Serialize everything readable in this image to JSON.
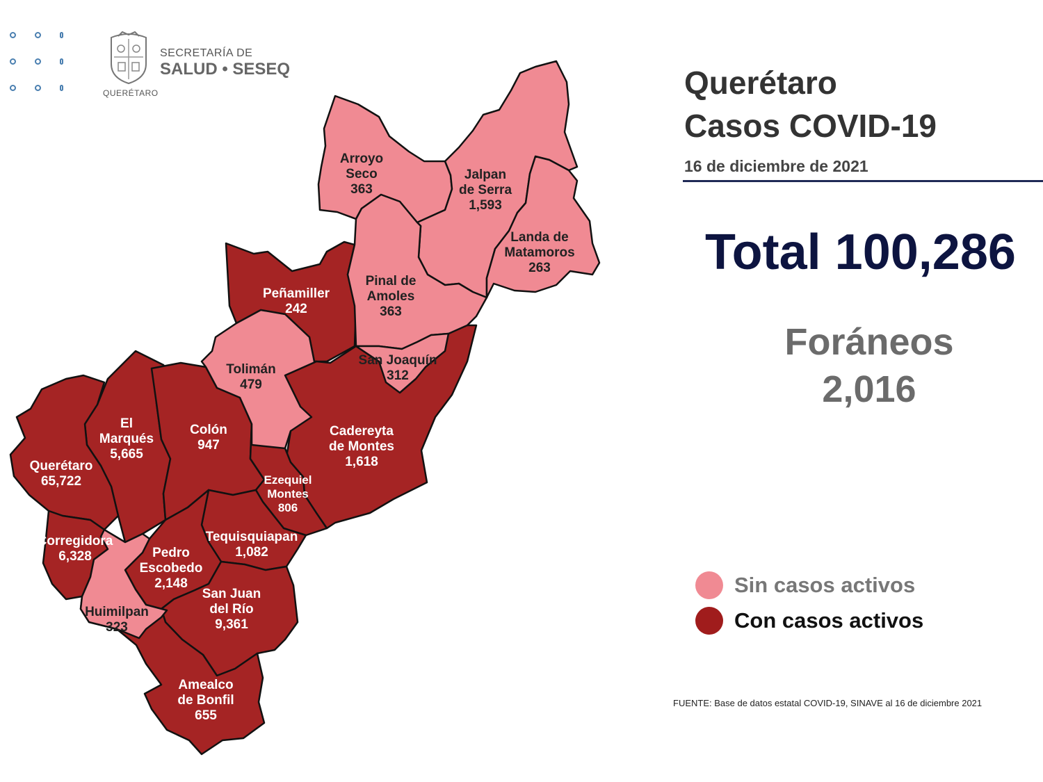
{
  "header": {
    "agency_top": "SECRETARÍA DE",
    "agency_bottom": "SALUD • SESEQ",
    "crest_caption": "QUERÉTARO",
    "crest_icon": "state-crest-icon"
  },
  "title": {
    "line1": "Querétaro",
    "line2": "Casos COVID-19",
    "date": "16 de diciembre de 2021"
  },
  "total": "Total 100,286",
  "foraneos": {
    "label": "Foráneos",
    "value": "2,016"
  },
  "legend": {
    "no_active": {
      "label": "Sin casos activos",
      "color": "#f08a93"
    },
    "active": {
      "label": "Con casos activos",
      "color": "#a01c1c"
    }
  },
  "source": "FUENTE: Base de datos estatal COVID-19, SINAVE al 16 de diciembre 2021",
  "colors": {
    "no_active": "#f08a93",
    "active": "#a52424",
    "border": "#111111"
  },
  "municipalities": [
    {
      "id": "arroyo-seco",
      "lines": [
        "Arroyo",
        "Seco",
        "363"
      ],
      "active": false
    },
    {
      "id": "jalpan",
      "lines": [
        "Jalpan",
        "de Serra",
        "1,593"
      ],
      "active": false
    },
    {
      "id": "landa",
      "lines": [
        "Landa de",
        "Matamoros",
        "263"
      ],
      "active": false
    },
    {
      "id": "pinal",
      "lines": [
        "Pinal de",
        "Amoles",
        "363"
      ],
      "active": false
    },
    {
      "id": "penamiller",
      "lines": [
        "Peñamiller",
        "242"
      ],
      "active": true
    },
    {
      "id": "san-joaquin",
      "lines": [
        "San Joaquín",
        "312"
      ],
      "active": false
    },
    {
      "id": "toliman",
      "lines": [
        "Tolimán",
        "479"
      ],
      "active": false
    },
    {
      "id": "cadereyta",
      "lines": [
        "Cadereyta",
        "de Montes",
        "1,618"
      ],
      "active": true
    },
    {
      "id": "el-marques",
      "lines": [
        "El",
        "Marqués",
        "5,665"
      ],
      "active": true
    },
    {
      "id": "colon",
      "lines": [
        "Colón",
        "947"
      ],
      "active": true
    },
    {
      "id": "queretaro",
      "lines": [
        "Querétaro",
        "65,722"
      ],
      "active": true
    },
    {
      "id": "ezequiel",
      "lines": [
        "Ezequiel",
        "Montes",
        "806"
      ],
      "active": true
    },
    {
      "id": "corregidora",
      "lines": [
        "Corregidora",
        "6,328"
      ],
      "active": true
    },
    {
      "id": "tequisquiapan",
      "lines": [
        "Tequisquiapan",
        "1,082"
      ],
      "active": true
    },
    {
      "id": "pedro-escobedo",
      "lines": [
        "Pedro",
        "Escobedo",
        "2,148"
      ],
      "active": true
    },
    {
      "id": "san-juan",
      "lines": [
        "San Juan",
        "del Río",
        "9,361"
      ],
      "active": true
    },
    {
      "id": "huimilpan",
      "lines": [
        "Huimilpan",
        "323"
      ],
      "active": false
    },
    {
      "id": "amealco",
      "lines": [
        "Amealco",
        "de Bonfil",
        "655"
      ],
      "active": true
    }
  ]
}
